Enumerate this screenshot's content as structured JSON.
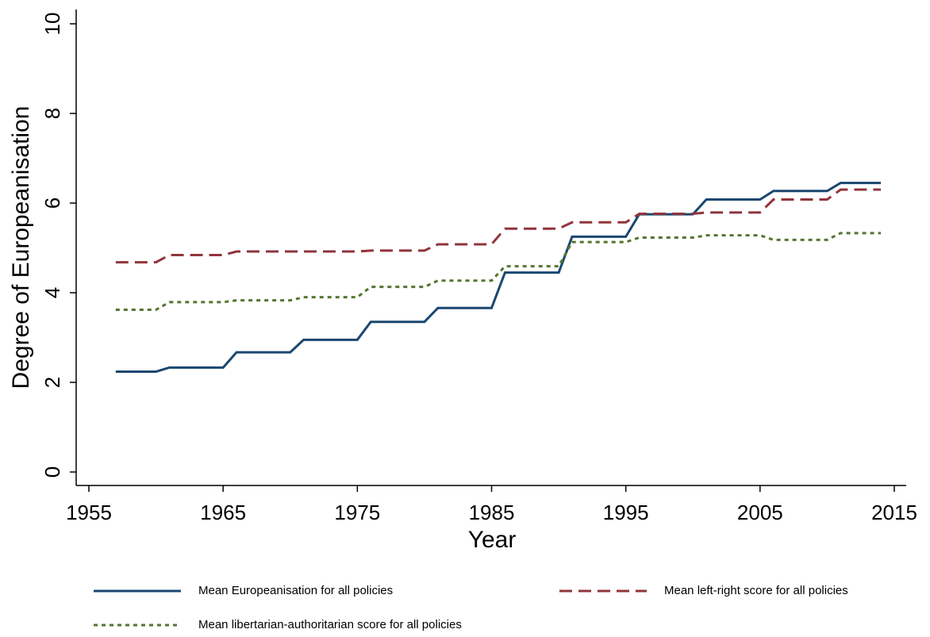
{
  "chart_data": {
    "type": "line",
    "xlabel": "Year",
    "ylabel": "Degree of Europeanisation",
    "x": [
      1957,
      1958,
      1959,
      1960,
      1961,
      1962,
      1963,
      1964,
      1965,
      1966,
      1967,
      1968,
      1969,
      1970,
      1971,
      1972,
      1973,
      1974,
      1975,
      1976,
      1977,
      1978,
      1979,
      1980,
      1981,
      1982,
      1983,
      1984,
      1985,
      1986,
      1987,
      1988,
      1989,
      1990,
      1991,
      1992,
      1993,
      1994,
      1995,
      1996,
      1997,
      1998,
      1999,
      2000,
      2001,
      2002,
      2003,
      2004,
      2005,
      2006,
      2007,
      2008,
      2009,
      2010,
      2011,
      2012,
      2013,
      2014
    ],
    "series": [
      {
        "name": "Mean Europeanisation for all policies",
        "color": "#1a476f",
        "dash": "solid",
        "values": [
          2.24,
          2.24,
          2.24,
          2.24,
          2.33,
          2.33,
          2.33,
          2.33,
          2.33,
          2.67,
          2.67,
          2.67,
          2.67,
          2.67,
          2.95,
          2.95,
          2.95,
          2.95,
          2.95,
          3.35,
          3.35,
          3.35,
          3.35,
          3.35,
          3.66,
          3.66,
          3.66,
          3.66,
          3.66,
          4.45,
          4.45,
          4.45,
          4.45,
          4.45,
          5.25,
          5.25,
          5.25,
          5.25,
          5.25,
          5.75,
          5.75,
          5.75,
          5.75,
          5.75,
          6.08,
          6.08,
          6.08,
          6.08,
          6.08,
          6.27,
          6.27,
          6.27,
          6.27,
          6.27,
          6.45,
          6.45,
          6.45,
          6.45
        ]
      },
      {
        "name": "Mean left-right score for all policies",
        "color": "#90353b",
        "dash": "dashed",
        "values": [
          4.68,
          4.68,
          4.68,
          4.68,
          4.84,
          4.84,
          4.84,
          4.84,
          4.84,
          4.92,
          4.92,
          4.92,
          4.92,
          4.92,
          4.92,
          4.92,
          4.92,
          4.92,
          4.92,
          4.94,
          4.94,
          4.94,
          4.94,
          4.94,
          5.08,
          5.08,
          5.08,
          5.08,
          5.08,
          5.43,
          5.43,
          5.43,
          5.43,
          5.43,
          5.57,
          5.57,
          5.57,
          5.57,
          5.57,
          5.76,
          5.76,
          5.76,
          5.76,
          5.76,
          5.79,
          5.79,
          5.79,
          5.79,
          5.79,
          6.08,
          6.08,
          6.08,
          6.08,
          6.08,
          6.3,
          6.3,
          6.3,
          6.3
        ]
      },
      {
        "name": "Mean libertarian-authoritarian score for all policies",
        "color": "#55752f",
        "dash": "dotted",
        "values": [
          3.62,
          3.62,
          3.62,
          3.62,
          3.79,
          3.79,
          3.79,
          3.79,
          3.79,
          3.83,
          3.83,
          3.83,
          3.83,
          3.83,
          3.9,
          3.9,
          3.9,
          3.9,
          3.9,
          4.13,
          4.13,
          4.13,
          4.13,
          4.13,
          4.27,
          4.27,
          4.27,
          4.27,
          4.27,
          4.59,
          4.59,
          4.59,
          4.59,
          4.59,
          5.13,
          5.13,
          5.13,
          5.13,
          5.13,
          5.23,
          5.23,
          5.23,
          5.23,
          5.23,
          5.28,
          5.28,
          5.28,
          5.28,
          5.28,
          5.18,
          5.18,
          5.18,
          5.18,
          5.18,
          5.33,
          5.33,
          5.33,
          5.33
        ]
      }
    ],
    "xlim": [
      1955,
      2015
    ],
    "xticks": [
      1955,
      1965,
      1975,
      1985,
      1995,
      2005,
      2015
    ],
    "ylim": [
      0,
      10
    ],
    "yticks": [
      0,
      2,
      4,
      6,
      8,
      10
    ],
    "grid": false,
    "legend": "bottom"
  }
}
